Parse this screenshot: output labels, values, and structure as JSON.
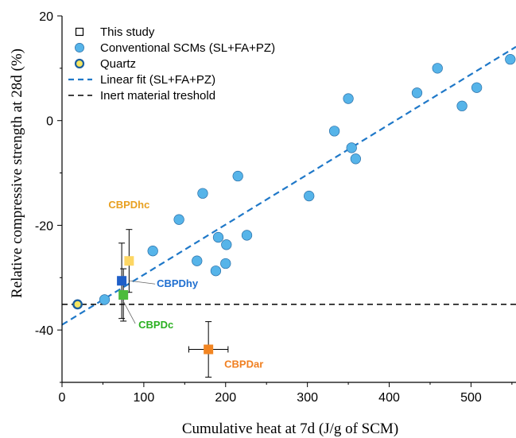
{
  "chart_data": {
    "type": "scatter",
    "title": "",
    "xlabel": "Cumulative heat at 7d (J/g of SCM)",
    "ylabel": "Relative compressive strength at 28d (%)",
    "xlim": [
      0,
      555
    ],
    "ylim": [
      -50,
      20
    ],
    "x_ticks": [
      "0",
      "100",
      "200",
      "300",
      "400",
      "500"
    ],
    "y_ticks": [
      "20",
      "0",
      "-20",
      "-40"
    ],
    "grid": false,
    "legend_position": "top-left",
    "legend": [
      {
        "label": "This study",
        "symbol": "open-square",
        "color": "#000000"
      },
      {
        "label": "Conventional SCMs (SL+FA+PZ)",
        "symbol": "circle",
        "color": "#56b4e9"
      },
      {
        "label": "Quartz",
        "symbol": "ring",
        "color": "#f5e663"
      },
      {
        "label": "Linear fit (SL+FA+PZ)",
        "symbol": "dashed-line",
        "color": "#1f78c8"
      },
      {
        "label": "Inert material treshold",
        "symbol": "dashed-line",
        "color": "#000000"
      }
    ],
    "series": [
      {
        "name": "Conventional SCMs (SL+FA+PZ)",
        "color": "#56b4e9",
        "points": [
          [
            52,
            -34.2
          ],
          [
            111,
            -24.9
          ],
          [
            143,
            -18.9
          ],
          [
            165,
            -26.8
          ],
          [
            172,
            -13.9
          ],
          [
            188,
            -28.7
          ],
          [
            191,
            -22.3
          ],
          [
            200,
            -27.3
          ],
          [
            201,
            -23.7
          ],
          [
            215,
            -10.6
          ],
          [
            226,
            -21.9
          ],
          [
            302,
            -14.4
          ],
          [
            333,
            -2.0
          ],
          [
            350,
            4.2
          ],
          [
            354,
            -5.2
          ],
          [
            359,
            -7.3
          ],
          [
            434,
            5.3
          ],
          [
            459,
            10.0
          ],
          [
            489,
            2.8
          ],
          [
            507,
            6.3
          ],
          [
            548,
            11.7
          ]
        ]
      },
      {
        "name": "Quartz",
        "color": "#f5e663",
        "points": [
          [
            19,
            -35.1
          ]
        ]
      },
      {
        "name": "This study",
        "points": [
          {
            "label": "CBPDhc",
            "x": 82,
            "y": -26.8,
            "xerr": 3,
            "yerr": [
              6.0,
              6.0
            ],
            "color": "#fdd663",
            "label_color": "#e8a020"
          },
          {
            "label": "CBPDhy",
            "x": 73,
            "y": -30.6,
            "xerr": 5,
            "yerr": [
              7.2,
              7.2
            ],
            "color": "#1f5fc8",
            "label_color": "#1f6fd0"
          },
          {
            "label": "CBPDc",
            "x": 75,
            "y": -33.3,
            "xerr": 4,
            "yerr": [
              5.0,
              5.0
            ],
            "color": "#4cbb3c",
            "label_color": "#2ab020"
          },
          {
            "label": "CBPDar",
            "x": 179,
            "y": -43.7,
            "xerr": 24,
            "yerr": [
              5.3,
              5.3
            ],
            "color": "#f28522",
            "label_color": "#f07f20"
          }
        ]
      }
    ],
    "fit_line": {
      "name": "Linear fit (SL+FA+PZ)",
      "x": [
        0,
        555
      ],
      "y": [
        -39.0,
        14.1
      ],
      "color": "#1f78c8"
    },
    "threshold": {
      "name": "Inert material treshold",
      "y": -35.1,
      "color": "#000000"
    }
  }
}
